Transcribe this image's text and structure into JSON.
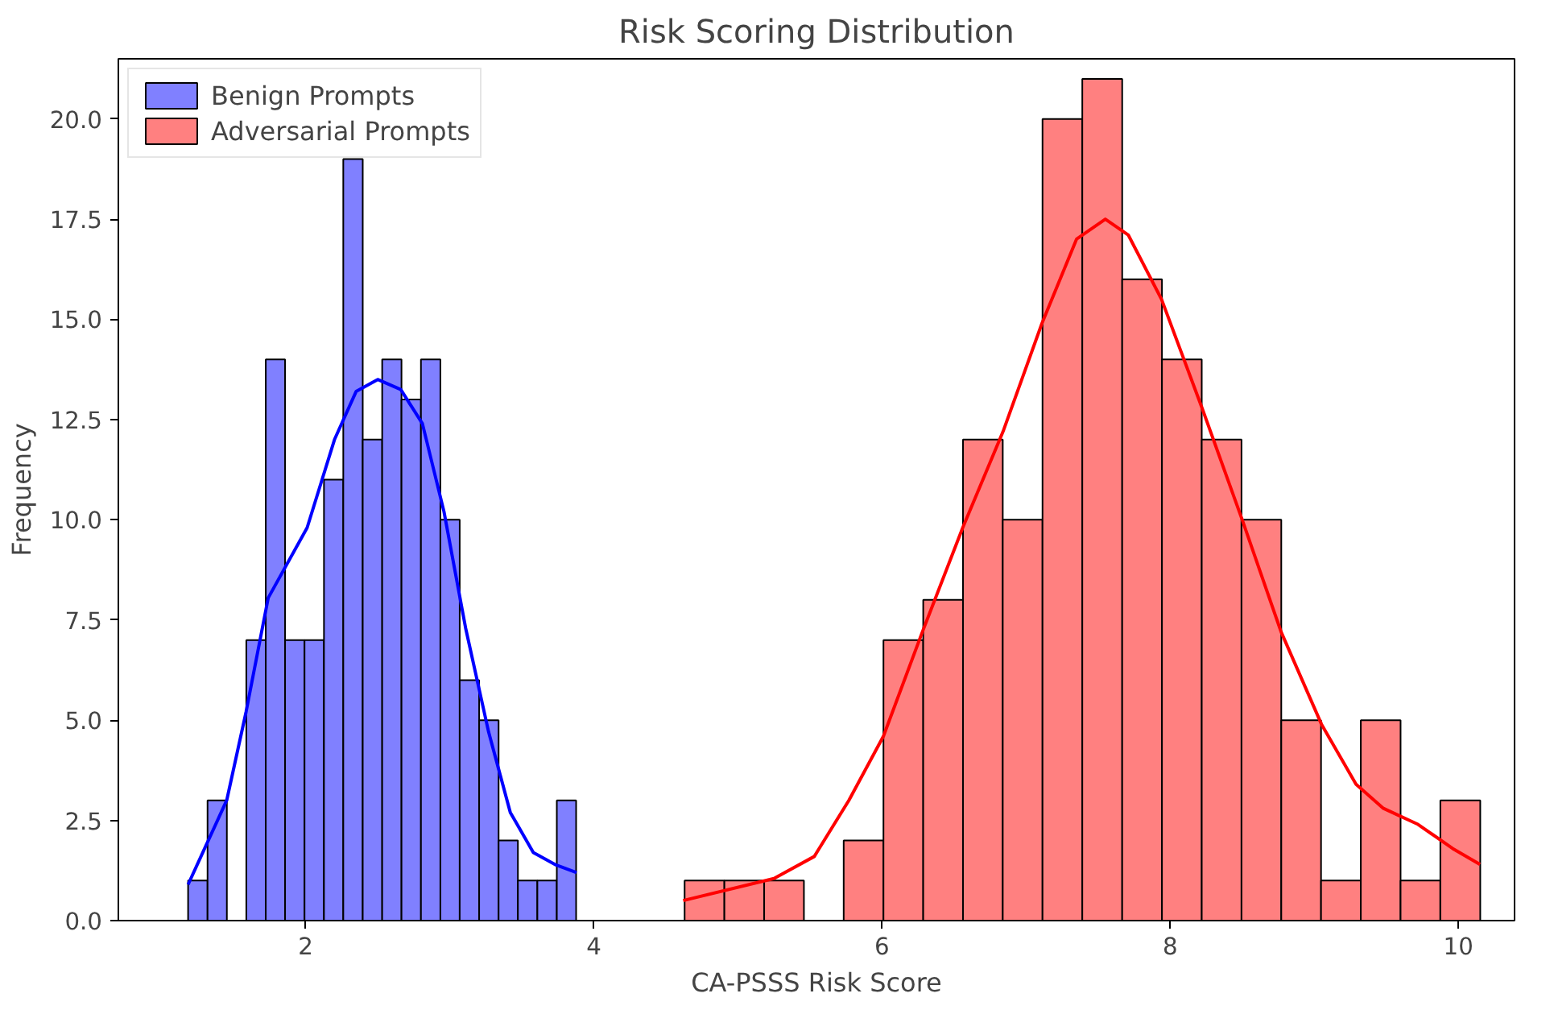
{
  "chart_data": {
    "type": "histogram",
    "title": "Risk Scoring Distribution",
    "xlabel": "CA-PSSS Risk Score",
    "ylabel": "Frequency",
    "xlim": [
      0.7,
      10.39
    ],
    "ylim": [
      0,
      21.5
    ],
    "xticks": [
      2,
      4,
      6,
      8,
      10
    ],
    "yticks": [
      {
        "value": 0,
        "label": "0.0"
      },
      {
        "value": 2.5,
        "label": "2.5"
      },
      {
        "value": 5,
        "label": "5.0"
      },
      {
        "value": 7.5,
        "label": "7.5"
      },
      {
        "value": 10,
        "label": "10.0"
      },
      {
        "value": 12.5,
        "label": "12.5"
      },
      {
        "value": 15,
        "label": "15.0"
      },
      {
        "value": 17.5,
        "label": "17.5"
      },
      {
        "value": 20,
        "label": "20.0"
      }
    ],
    "grid": false,
    "legend": "top left",
    "series": [
      {
        "name": "Benign Prompts",
        "color": "#8080ff",
        "bins": [
          1.184,
          1.319,
          1.453,
          1.588,
          1.723,
          1.857,
          1.992,
          2.127,
          2.261,
          2.396,
          2.531,
          2.665,
          2.8,
          2.935,
          3.069,
          3.204,
          3.339,
          3.473,
          3.608,
          3.743,
          3.877
        ],
        "values": [
          1,
          3,
          0,
          7,
          14,
          7,
          7,
          11,
          19,
          12,
          14,
          13,
          14,
          10,
          6,
          5,
          2,
          1,
          1,
          3
        ]
      },
      {
        "name": "Adversarial Prompts",
        "color": "#ff8080",
        "bins": [
          4.63,
          4.906,
          5.182,
          5.458,
          5.734,
          6.01,
          6.286,
          6.562,
          6.838,
          7.114,
          7.39,
          7.667,
          7.943,
          8.219,
          8.495,
          8.771,
          9.047,
          9.323,
          9.599,
          9.875,
          10.152
        ],
        "values": [
          1,
          1,
          1,
          0,
          2,
          7,
          8,
          12,
          10,
          20,
          21,
          16,
          14,
          12,
          10,
          5,
          1,
          5,
          1,
          3
        ]
      },
      {
        "type": "line",
        "color": "#0000ff",
        "x": [
          1.184,
          1.452,
          1.586,
          1.74,
          2.01,
          2.2,
          2.35,
          2.5,
          2.66,
          2.81,
          2.96,
          3.11,
          3.27,
          3.42,
          3.58,
          3.73,
          3.88
        ],
        "values": [
          0.9,
          3.0,
          5.2,
          8.05,
          9.8,
          12.0,
          13.2,
          13.5,
          13.25,
          12.4,
          10.2,
          7.3,
          4.7,
          2.7,
          1.7,
          1.4,
          1.2
        ]
      },
      {
        "type": "line",
        "color": "#ff0000",
        "x": [
          4.62,
          5.25,
          5.53,
          5.77,
          6.01,
          6.28,
          6.56,
          6.84,
          7.11,
          7.35,
          7.55,
          7.71,
          7.94,
          8.22,
          8.5,
          8.77,
          9.05,
          9.29,
          9.48,
          9.72,
          9.96,
          10.15
        ],
        "values": [
          0.5,
          1.05,
          1.6,
          3.0,
          4.6,
          7.2,
          9.8,
          12.2,
          14.9,
          17.0,
          17.5,
          17.1,
          15.5,
          12.8,
          10.0,
          7.2,
          4.9,
          3.4,
          2.8,
          2.4,
          1.8,
          1.4
        ]
      }
    ]
  }
}
